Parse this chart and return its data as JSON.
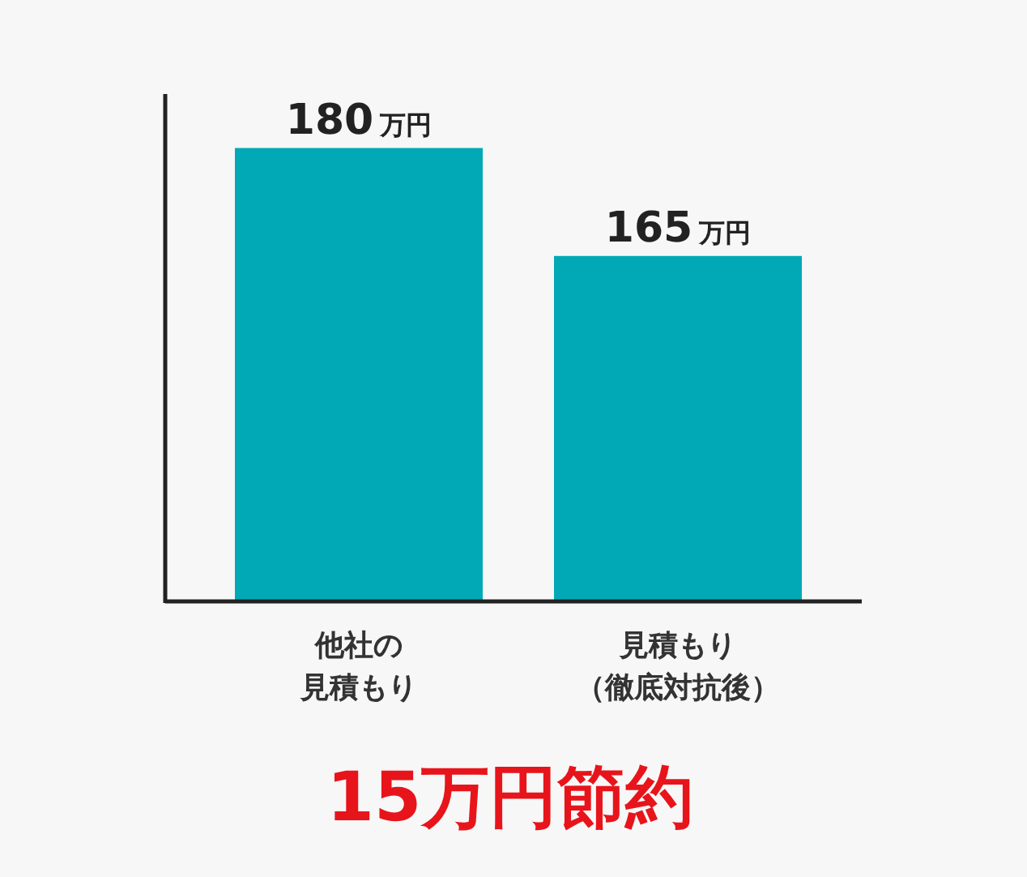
{
  "chart_data": {
    "type": "bar",
    "categories": [
      "他社の見積もり",
      "見積もり（徹底対抗後）"
    ],
    "values": [
      180,
      165
    ],
    "value_labels": [
      "180万円",
      "165万円"
    ],
    "color": "#00a9b5",
    "ylim": [
      117,
      187.5
    ],
    "annotations": [
      "15万円節約"
    ]
  }
}
